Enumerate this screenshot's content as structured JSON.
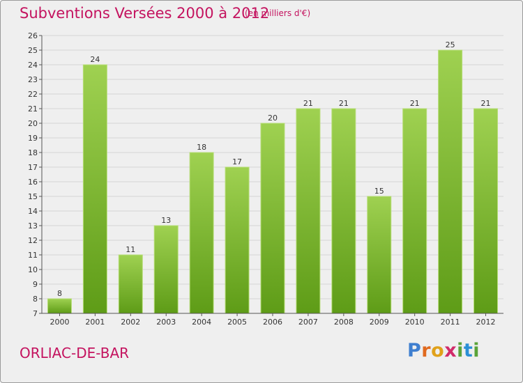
{
  "header": {
    "title": "Subventions Versées 2000 à 2012",
    "subtitle": "(en milliers d'€)"
  },
  "footer": {
    "commune": "ORLIAC-DE-BAR",
    "logo": "Proxiti"
  },
  "colors": {
    "title": "#c4135f",
    "bar_top": "#9fd151",
    "bar_bottom": "#5e9c17",
    "background": "#efefef"
  },
  "chart_data": {
    "type": "bar",
    "title": "Subventions Versées 2000 à 2012",
    "subtitle": "(en milliers d'€)",
    "categories": [
      "2000",
      "2001",
      "2002",
      "2003",
      "2004",
      "2005",
      "2006",
      "2007",
      "2008",
      "2009",
      "2010",
      "2011",
      "2012"
    ],
    "values": [
      8,
      24,
      11,
      13,
      18,
      17,
      20,
      21,
      21,
      15,
      21,
      25,
      21
    ],
    "ylim": [
      7,
      26
    ],
    "yticks": [
      7,
      8,
      9,
      10,
      11,
      12,
      13,
      14,
      15,
      16,
      17,
      18,
      19,
      20,
      21,
      22,
      23,
      24,
      25,
      26
    ],
    "grid": true,
    "legend": "none"
  }
}
